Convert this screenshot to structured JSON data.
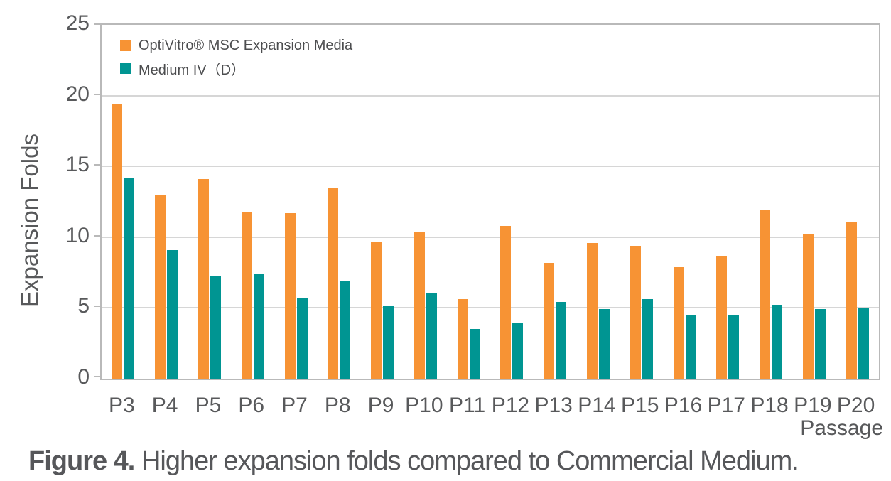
{
  "chart_data": {
    "type": "bar",
    "categories": [
      "P3",
      "P4",
      "P5",
      "P6",
      "P7",
      "P8",
      "P9",
      "P10",
      "P11",
      "P12",
      "P13",
      "P14",
      "P15",
      "P16",
      "P17",
      "P18",
      "P19",
      "P20"
    ],
    "series": [
      {
        "name": "OptiVitro® MSC Expansion Media",
        "key": "optivitro-msc-expansion-media",
        "color": "#F79334",
        "values": [
          19.4,
          13.0,
          14.1,
          11.8,
          11.7,
          13.5,
          9.7,
          10.4,
          5.6,
          10.8,
          8.2,
          9.6,
          9.4,
          7.9,
          8.7,
          11.9,
          10.2,
          11.1
        ]
      },
      {
        "name": "Medium IV（D）",
        "key": "medium-iv-d",
        "color": "#009592",
        "values": [
          14.2,
          9.1,
          7.3,
          7.4,
          5.7,
          6.9,
          5.1,
          6.0,
          3.5,
          3.9,
          5.4,
          4.9,
          5.6,
          4.5,
          4.5,
          5.2,
          4.9,
          5.0
        ]
      }
    ],
    "xlabel": "Passage",
    "ylabel": "Expansion Folds",
    "ylim": [
      0,
      25
    ],
    "yticks": [
      0,
      5,
      10,
      15,
      20,
      25
    ],
    "grid": "horizontal",
    "legend_position": "top-left"
  },
  "caption": {
    "prefix": "Figure 4.",
    "text": "Higher expansion folds compared to Commercial Medium."
  },
  "colors": {
    "bar_orange": "#F79334",
    "bar_teal": "#009592",
    "axis_text": "#58595b",
    "gridline": "#d6d6d6",
    "plot_border": "#b9b9b9"
  }
}
